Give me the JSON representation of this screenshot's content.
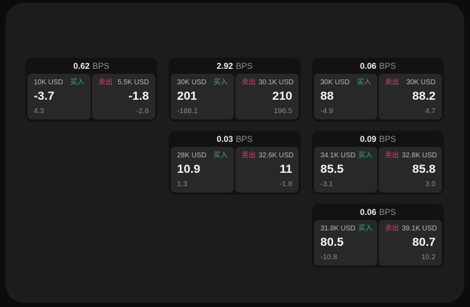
{
  "labels": {
    "bps": "BPS",
    "buy": "买入",
    "sell": "卖出"
  },
  "colors": {
    "background": "#0c0c0d",
    "panel": "#1c1c1e",
    "card": "#121214",
    "tile": "#28282a",
    "buy_green": "#3fab6e",
    "sell_red": "#c9485b",
    "value_white": "#f4f4f5",
    "muted_gray": "#8a8a8e"
  },
  "cards": [
    {
      "bps": "0.62",
      "buy": {
        "amount": "10K USD",
        "value": "-3.7",
        "sub": "4.3"
      },
      "sell": {
        "amount": "5.5K USD",
        "value": "-1.8",
        "sub": "-2.6"
      }
    },
    {
      "bps": "2.92",
      "buy": {
        "amount": "30K USD",
        "value": "201",
        "sub": "-188.1"
      },
      "sell": {
        "amount": "30.1K USD",
        "value": "210",
        "sub": "196.5"
      }
    },
    {
      "bps": "0.06",
      "buy": {
        "amount": "30K USD",
        "value": "88",
        "sub": "-4.9"
      },
      "sell": {
        "amount": "30K USD",
        "value": "88.2",
        "sub": "4.7"
      }
    },
    {
      "bps": "0.03",
      "buy": {
        "amount": "28K USD",
        "value": "10.9",
        "sub": "1.3"
      },
      "sell": {
        "amount": "32.6K USD",
        "value": "11",
        "sub": "-1.8"
      }
    },
    {
      "bps": "0.09",
      "buy": {
        "amount": "34.1K USD",
        "value": "85.5",
        "sub": "-3.1"
      },
      "sell": {
        "amount": "32.8K USD",
        "value": "85.8",
        "sub": "3.0"
      }
    },
    {
      "bps": "0.06",
      "buy": {
        "amount": "31.8K USD",
        "value": "80.5",
        "sub": "-10.8"
      },
      "sell": {
        "amount": "39.1K USD",
        "value": "80.7",
        "sub": "10.2"
      }
    }
  ]
}
